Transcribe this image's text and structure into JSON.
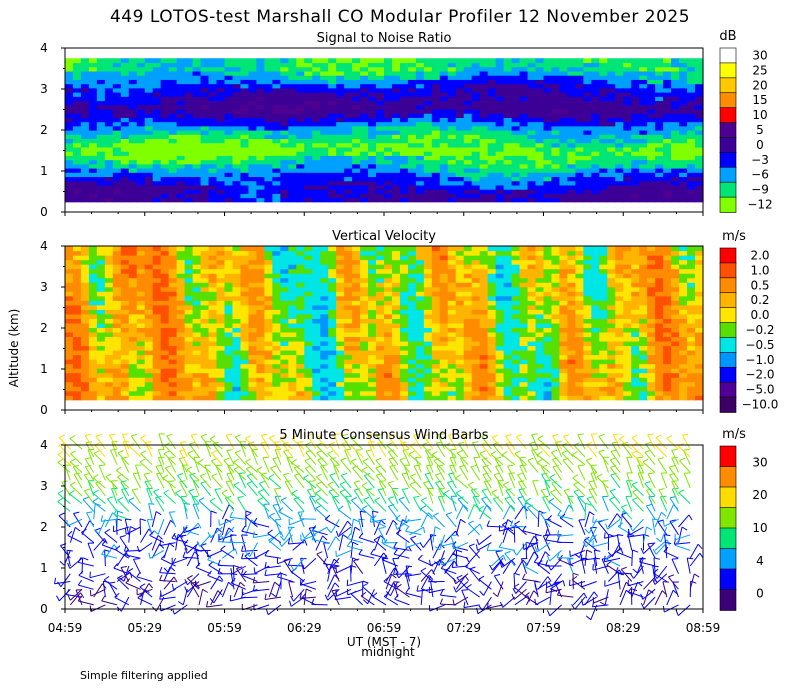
{
  "title": "449 LOTOS-test Marshall CO Modular Profiler 12 November 2025",
  "ylabel": "Altitude (km)",
  "xlabel": "UT (MST - 7)",
  "midnight_label": "midnight",
  "footnote": "Simple filtering applied",
  "time_ticks": [
    "04:59",
    "05:29",
    "05:59",
    "06:29",
    "06:59",
    "07:29",
    "07:59",
    "08:29",
    "08:59"
  ],
  "altitude_ticks": [
    "0",
    "1",
    "2",
    "3",
    "4"
  ],
  "chart_data": [
    {
      "type": "heatmap",
      "title": "Signal to Noise Ratio",
      "units": "dB",
      "x_range_minutes_ut": [
        299,
        539
      ],
      "ylim": [
        0,
        4
      ],
      "data_range_km": [
        0.25,
        3.75
      ],
      "colorbar_labels": [
        "30",
        "25",
        "20",
        "15",
        "10",
        "5",
        "0",
        "−3",
        "−6",
        "−9",
        "−12"
      ],
      "colorbar_colors": [
        "#ffffff",
        "#ffff00",
        "#ffc800",
        "#ff8c00",
        "#ff0000",
        "#500090",
        "#3c0096",
        "#0000ff",
        "#00a0ff",
        "#00e676",
        "#80ff00"
      ],
      "vertical_profile_dB": [
        {
          "alt_km": 0.5,
          "dB": -1
        },
        {
          "alt_km": 1.0,
          "dB": -6
        },
        {
          "alt_km": 1.5,
          "dB": -12
        },
        {
          "alt_km": 2.0,
          "dB": -7
        },
        {
          "alt_km": 2.5,
          "dB": 1
        },
        {
          "alt_km": 3.0,
          "dB": -2
        },
        {
          "alt_km": 3.5,
          "dB": -9
        }
      ]
    },
    {
      "type": "heatmap",
      "title": "Vertical Velocity",
      "units": "m/s",
      "x_range_minutes_ut": [
        299,
        539
      ],
      "ylim": [
        0,
        4
      ],
      "data_range_km": [
        0.25,
        4.0
      ],
      "colorbar_labels": [
        "2.0",
        "1.0",
        "0.5",
        "0.2",
        "0.0",
        "−0.2",
        "−0.5",
        "−1.0",
        "−2.0",
        "−5.0",
        "−10.0"
      ],
      "colorbar_colors": [
        "#ff0000",
        "#ff5000",
        "#ff8c00",
        "#ffb400",
        "#ffe600",
        "#55e000",
        "#00e6e6",
        "#0096ff",
        "#0000ff",
        "#500096",
        "#3c0064"
      ],
      "time_profile_ms": [
        {
          "t": "04:59",
          "w": 0.2
        },
        {
          "t": "05:29",
          "w": 0.4
        },
        {
          "t": "05:59",
          "w": 0.1
        },
        {
          "t": "06:29",
          "w": -0.3
        },
        {
          "t": "06:59",
          "w": 0.0
        },
        {
          "t": "07:29",
          "w": 0.1
        },
        {
          "t": "07:59",
          "w": -0.2
        },
        {
          "t": "08:29",
          "w": 0.2
        },
        {
          "t": "08:59",
          "w": 0.3
        }
      ]
    },
    {
      "type": "scatter",
      "title": "5 Minute Consensus Wind Barbs",
      "units": "m/s",
      "x_range_minutes_ut": [
        299,
        539
      ],
      "ylim": [
        0,
        4
      ],
      "colorbar_labels": [
        "30",
        "20",
        "10",
        "4",
        "0"
      ],
      "colorbar_colors": [
        "#ff0000",
        "#ff8c00",
        "#ffdc00",
        "#80e600",
        "#00e676",
        "#00a0ff",
        "#0000ff",
        "#3c0078"
      ],
      "speed_profile_ms": [
        {
          "alt_km": 0.5,
          "speed": 2.5
        },
        {
          "alt_km": 1.0,
          "speed": 3.0
        },
        {
          "alt_km": 1.5,
          "speed": 3.5
        },
        {
          "alt_km": 2.0,
          "speed": 4.0
        },
        {
          "alt_km": 2.5,
          "speed": 7.0
        },
        {
          "alt_km": 3.0,
          "speed": 9.0
        },
        {
          "alt_km": 3.5,
          "speed": 11.0
        },
        {
          "alt_km": 4.0,
          "speed": 13.0
        }
      ]
    }
  ]
}
